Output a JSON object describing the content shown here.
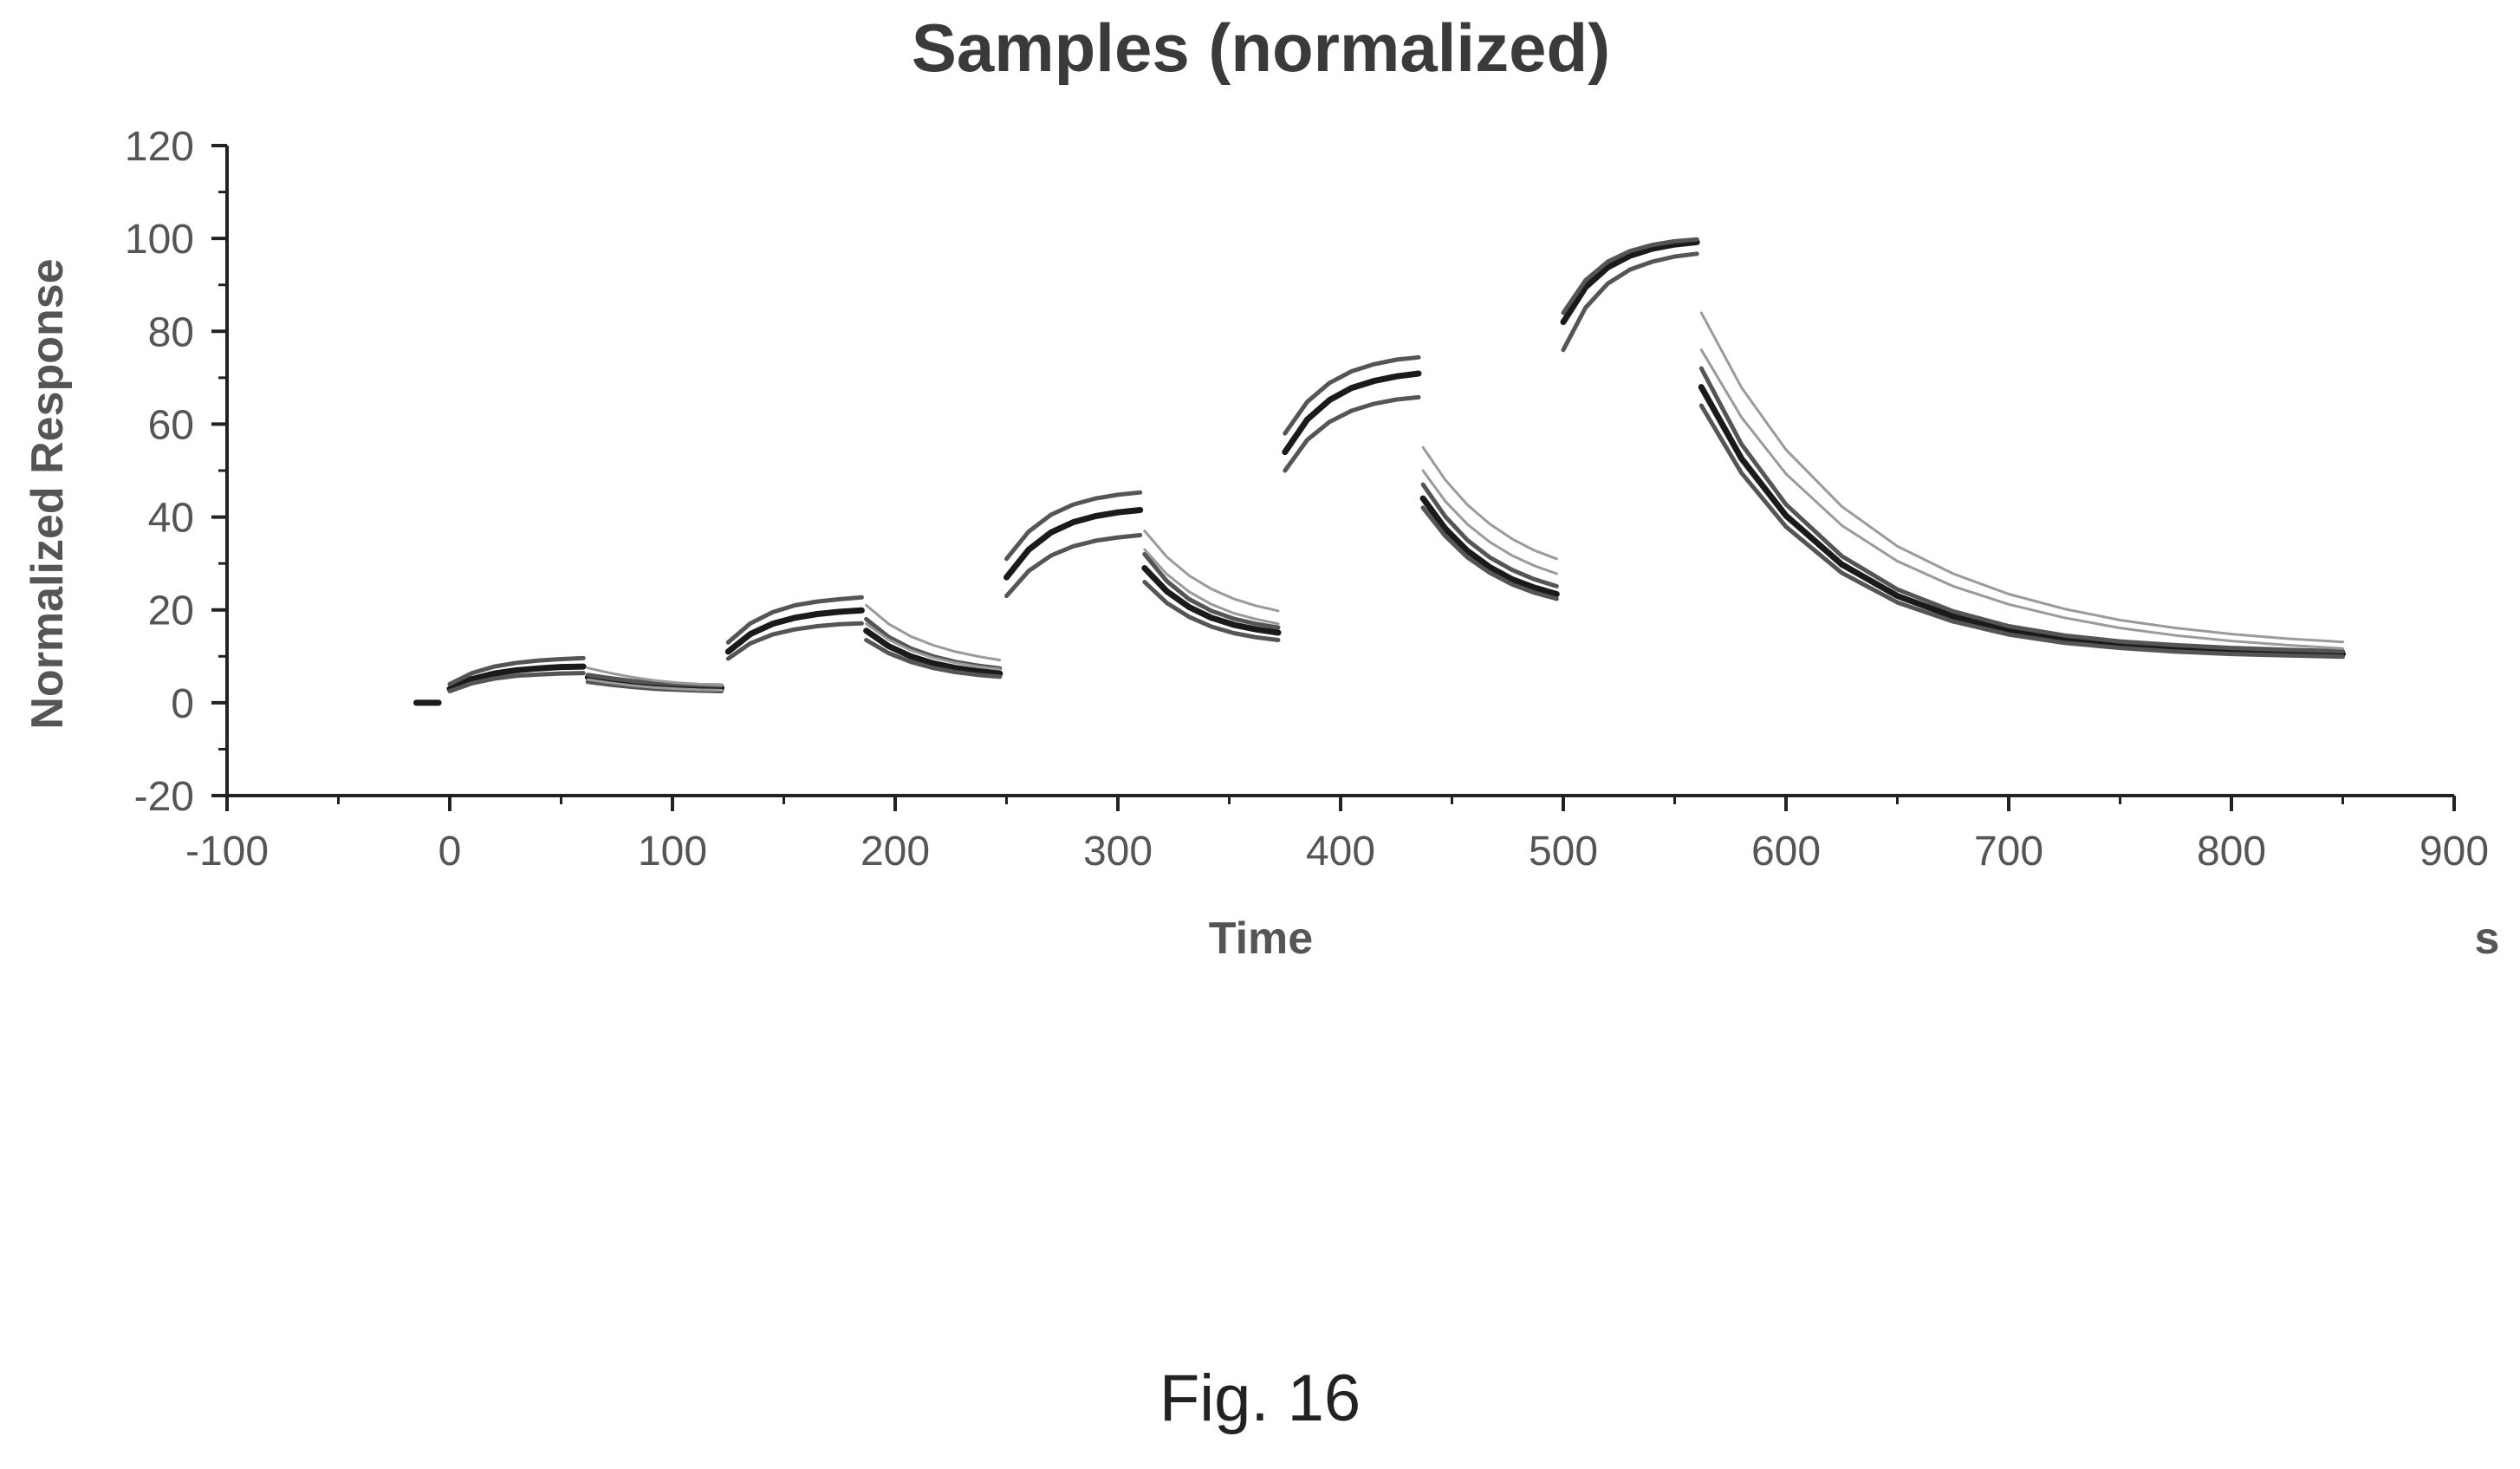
{
  "chart_data": {
    "type": "line",
    "title": "Samples (normalized)",
    "xlabel": "Time",
    "xunit": "s",
    "ylabel": "Normalized Response",
    "xlim": [
      -100,
      900
    ],
    "ylim": [
      -20,
      120
    ],
    "xticks": [
      -100,
      0,
      100,
      200,
      300,
      400,
      500,
      600,
      700,
      800,
      900
    ],
    "yticks": [
      -20,
      0,
      20,
      40,
      60,
      80,
      100,
      120
    ],
    "grid": false,
    "legend": "none",
    "colors": {
      "dark": "#1a1a1a",
      "mid": "#555555",
      "light": "#9a9a9a",
      "axis": "#222222"
    },
    "series": [
      {
        "values": [
          {
            "x": [
              -15,
              -5
            ],
            "y": [
              0,
              0
            ]
          },
          {
            "x": [
              0,
              10,
              20,
              30,
              40,
              50,
              60
            ],
            "y": [
              3.0,
              5.1,
              6.3,
              7.0,
              7.4,
              7.7,
              7.8
            ]
          },
          {
            "x": [
              62,
              72,
              82,
              92,
              102,
              112,
              122
            ],
            "y": [
              5.5,
              4.8,
              4.2,
              3.8,
              3.5,
              3.3,
              3.2
            ]
          },
          {
            "x": [
              125,
              135,
              145,
              155,
              165,
              175,
              185
            ],
            "y": [
              11.0,
              14.8,
              17.0,
              18.3,
              19.1,
              19.6,
              19.9
            ]
          },
          {
            "x": [
              187,
              197,
              207,
              217,
              227,
              237,
              247
            ],
            "y": [
              15.5,
              12.2,
              10.0,
              8.5,
              7.5,
              6.8,
              6.3
            ]
          },
          {
            "x": [
              250,
              260,
              270,
              280,
              290,
              300,
              310
            ],
            "y": [
              27.0,
              33.0,
              36.7,
              38.9,
              40.2,
              41.0,
              41.5
            ]
          },
          {
            "x": [
              312,
              322,
              332,
              342,
              352,
              362,
              372
            ],
            "y": [
              29.0,
              24.0,
              20.6,
              18.3,
              16.8,
              15.8,
              15.1
            ]
          },
          {
            "x": [
              375,
              385,
              395,
              405,
              415,
              425,
              435
            ],
            "y": [
              54.0,
              61.0,
              65.2,
              67.8,
              69.3,
              70.3,
              70.9
            ]
          },
          {
            "x": [
              437,
              447,
              457,
              467,
              477,
              487,
              497
            ],
            "y": [
              44.0,
              37.5,
              32.7,
              29.2,
              26.6,
              24.8,
              23.4
            ]
          },
          {
            "x": [
              500,
              510,
              520,
              530,
              540,
              550,
              560
            ],
            "y": [
              82.0,
              89.5,
              93.8,
              96.3,
              97.8,
              98.7,
              99.2
            ]
          },
          {
            "x": [
              562,
              580,
              600,
              625,
              650,
              675,
              700,
              725,
              750,
              775,
              800,
              825,
              850
            ],
            "y": [
              68.0,
              52.6,
              40.3,
              29.8,
              23.0,
              18.6,
              15.6,
              13.7,
              12.5,
              11.7,
              11.1,
              10.8,
              10.5
            ]
          }
        ]
      },
      {
        "values": [
          {
            "x": [
              0,
              10,
              20,
              30,
              40,
              50,
              60
            ],
            "y": [
              4.0,
              6.4,
              7.8,
              8.6,
              9.1,
              9.4,
              9.6
            ]
          },
          {
            "x": [
              62,
              72,
              82,
              92,
              102,
              112,
              122
            ],
            "y": [
              6.0,
              5.3,
              4.7,
              4.3,
              4.0,
              3.8,
              3.7
            ]
          },
          {
            "x": [
              125,
              135,
              145,
              155,
              165,
              175,
              185
            ],
            "y": [
              13.0,
              17.1,
              19.5,
              21.0,
              21.8,
              22.3,
              22.7
            ]
          },
          {
            "x": [
              187,
              197,
              207,
              217,
              227,
              237,
              247
            ],
            "y": [
              18.0,
              14.2,
              11.7,
              10.0,
              8.8,
              8.0,
              7.4
            ]
          },
          {
            "x": [
              250,
              260,
              270,
              280,
              290,
              300,
              310
            ],
            "y": [
              31.0,
              36.9,
              40.5,
              42.7,
              44.0,
              44.8,
              45.3
            ]
          },
          {
            "x": [
              312,
              322,
              332,
              342,
              352,
              362,
              372
            ],
            "y": [
              32.0,
              26.2,
              22.3,
              19.8,
              18.1,
              17.0,
              16.2
            ]
          },
          {
            "x": [
              375,
              385,
              395,
              405,
              415,
              425,
              435
            ],
            "y": [
              58.0,
              64.8,
              68.9,
              71.4,
              72.9,
              73.9,
              74.4
            ]
          },
          {
            "x": [
              437,
              447,
              457,
              467,
              477,
              487,
              497
            ],
            "y": [
              47.0,
              40.1,
              35.0,
              31.3,
              28.6,
              26.6,
              25.1
            ]
          },
          {
            "x": [
              500,
              510,
              520,
              530,
              540,
              550,
              560
            ],
            "y": [
              84.0,
              91.0,
              95.0,
              97.3,
              98.6,
              99.4,
              99.8
            ]
          },
          {
            "x": [
              562,
              580,
              600,
              625,
              650,
              675,
              700,
              725,
              750,
              775,
              800,
              825,
              850
            ],
            "y": [
              72.0,
              55.7,
              42.7,
              31.6,
              24.4,
              19.7,
              16.5,
              14.5,
              13.2,
              12.4,
              11.8,
              11.4,
              11.1
            ]
          }
        ]
      },
      {
        "values": [
          {
            "x": [
              0,
              10,
              20,
              30,
              40,
              50,
              60
            ],
            "y": [
              2.5,
              4.2,
              5.2,
              5.8,
              6.1,
              6.3,
              6.4
            ]
          },
          {
            "x": [
              62,
              72,
              82,
              92,
              102,
              112,
              122
            ],
            "y": [
              4.5,
              3.9,
              3.4,
              3.0,
              2.8,
              2.6,
              2.5
            ]
          },
          {
            "x": [
              125,
              135,
              145,
              155,
              165,
              175,
              185
            ],
            "y": [
              9.5,
              12.8,
              14.7,
              15.8,
              16.5,
              16.9,
              17.1
            ]
          },
          {
            "x": [
              187,
              197,
              207,
              217,
              227,
              237,
              247
            ],
            "y": [
              13.5,
              10.7,
              8.8,
              7.5,
              6.6,
              6.0,
              5.6
            ]
          },
          {
            "x": [
              250,
              260,
              270,
              280,
              290,
              300,
              310
            ],
            "y": [
              23.0,
              28.4,
              31.7,
              33.7,
              34.9,
              35.6,
              36.1
            ]
          },
          {
            "x": [
              312,
              322,
              332,
              342,
              352,
              362,
              372
            ],
            "y": [
              26.0,
              21.5,
              18.5,
              16.4,
              15.0,
              14.1,
              13.5
            ]
          },
          {
            "x": [
              375,
              385,
              395,
              405,
              415,
              425,
              435
            ],
            "y": [
              50.0,
              56.6,
              60.5,
              62.9,
              64.4,
              65.3,
              65.8
            ]
          },
          {
            "x": [
              437,
              447,
              457,
              467,
              477,
              487,
              497
            ],
            "y": [
              42.0,
              35.9,
              31.3,
              28.0,
              25.5,
              23.7,
              22.4
            ]
          },
          {
            "x": [
              500,
              510,
              520,
              530,
              540,
              550,
              560
            ],
            "y": [
              76.0,
              85.1,
              90.3,
              93.3,
              95.0,
              96.1,
              96.7
            ]
          },
          {
            "x": [
              562,
              580,
              600,
              625,
              650,
              675,
              700,
              725,
              750,
              775,
              800,
              825,
              850
            ],
            "y": [
              64.0,
              49.5,
              37.9,
              28.0,
              21.6,
              17.5,
              14.7,
              12.9,
              11.8,
              11.0,
              10.5,
              10.2,
              9.9
            ]
          }
        ]
      },
      {
        "values": [
          {
            "x": [
              62,
              72,
              82,
              92,
              102,
              112,
              122
            ],
            "y": [
              7.5,
              6.4,
              5.5,
              4.8,
              4.3,
              4.0,
              3.8
            ]
          },
          {
            "x": [
              187,
              197,
              207,
              217,
              227,
              237,
              247
            ],
            "y": [
              21.0,
              17.0,
              14.3,
              12.4,
              11.0,
              10.0,
              9.2
            ]
          },
          {
            "x": [
              312,
              322,
              332,
              342,
              352,
              362,
              372
            ],
            "y": [
              37.0,
              31.4,
              27.4,
              24.5,
              22.4,
              20.9,
              19.8
            ]
          },
          {
            "x": [
              437,
              447,
              457,
              467,
              477,
              487,
              497
            ],
            "y": [
              55.0,
              48.0,
              42.6,
              38.5,
              35.3,
              32.8,
              31.0
            ]
          },
          {
            "x": [
              562,
              580,
              600,
              625,
              650,
              675,
              700,
              725,
              750,
              775,
              800,
              825,
              850
            ],
            "y": [
              84.0,
              67.9,
              54.5,
              42.3,
              33.7,
              27.8,
              23.4,
              20.2,
              17.8,
              16.1,
              14.8,
              13.8,
              13.1
            ]
          }
        ]
      },
      {
        "values": [
          {
            "x": [
              62,
              72,
              82,
              92,
              102,
              112,
              122
            ],
            "y": [
              5.0,
              4.3,
              3.7,
              3.3,
              3.0,
              2.8,
              2.7
            ]
          },
          {
            "x": [
              187,
              197,
              207,
              217,
              227,
              237,
              247
            ],
            "y": [
              17.0,
              13.6,
              11.3,
              9.7,
              8.6,
              7.8,
              7.2
            ]
          },
          {
            "x": [
              312,
              322,
              332,
              342,
              352,
              362,
              372
            ],
            "y": [
              33.0,
              27.7,
              23.9,
              21.2,
              19.3,
              18.0,
              17.0
            ]
          },
          {
            "x": [
              437,
              447,
              457,
              467,
              477,
              487,
              497
            ],
            "y": [
              50.0,
              43.4,
              38.4,
              34.6,
              31.7,
              29.5,
              27.8
            ]
          },
          {
            "x": [
              562,
              580,
              600,
              625,
              650,
              675,
              700,
              725,
              750,
              775,
              800,
              825,
              850
            ],
            "y": [
              76.0,
              61.5,
              49.3,
              38.2,
              30.5,
              25.1,
              21.2,
              18.3,
              16.1,
              14.5,
              13.3,
              12.4,
              11.7
            ]
          }
        ]
      }
    ],
    "caption": "Fig. 16"
  }
}
